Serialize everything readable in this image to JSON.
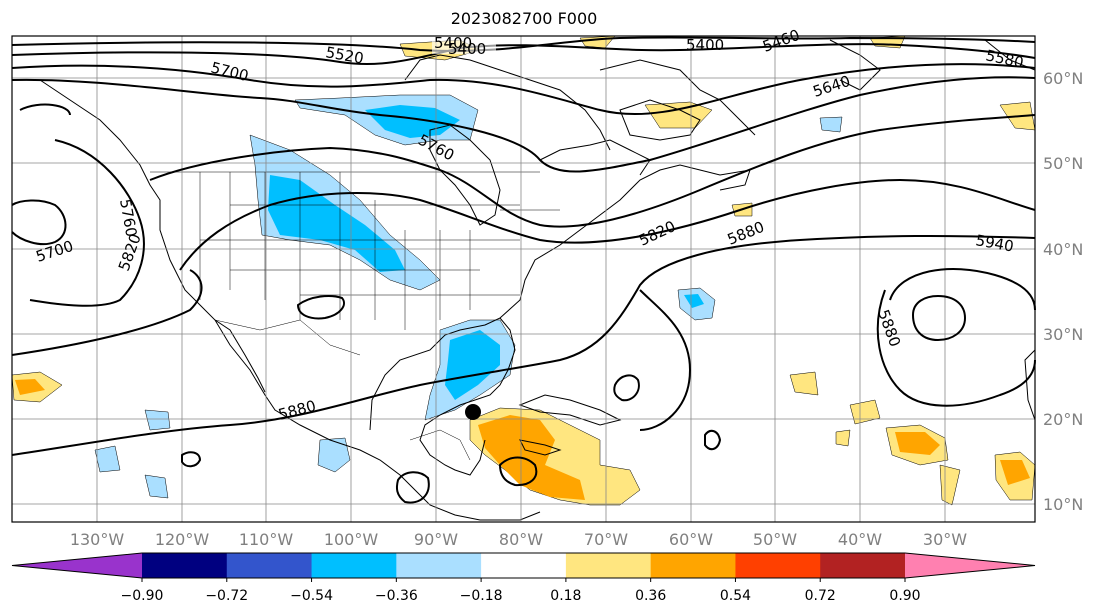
{
  "title": "2023082700 F000",
  "lon_ticks": [
    "130°W",
    "120°W",
    "110°W",
    "100°W",
    "90°W",
    "80°W",
    "70°W",
    "60°W",
    "50°W",
    "40°W",
    "30°W"
  ],
  "lat_ticks": [
    "60°N",
    "50°N",
    "40°N",
    "30°N",
    "20°N",
    "10°N"
  ],
  "contour_labels": [
    "5400",
    "5400",
    "5400",
    "5460",
    "5520",
    "5580",
    "5640",
    "5700",
    "5700",
    "5760",
    "5760",
    "5820",
    "5820",
    "5880",
    "5880",
    "5880",
    "5940"
  ],
  "colorbar": {
    "ticks": [
      "−0.90",
      "−0.72",
      "−0.54",
      "−0.36",
      "−0.18",
      "0.18",
      "0.36",
      "0.54",
      "0.72",
      "0.90"
    ],
    "colors": [
      "#9933cc",
      "#000080",
      "#3355cc",
      "#00bfff",
      "#aadfff",
      "#ffffff",
      "#ffe680",
      "#ffa500",
      "#ff4000",
      "#b22222",
      "#ff80b0"
    ]
  },
  "storm_marker": {
    "lon": -86.5,
    "lat": 20.5
  }
}
